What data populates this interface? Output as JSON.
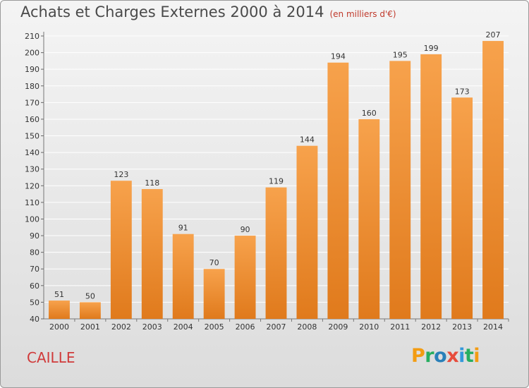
{
  "header": {
    "title": "Achats et Charges Externes 2000 à 2014",
    "subtitle": "(en milliers d'€)"
  },
  "footer": {
    "commune": "CAILLE",
    "logo_text": "Proxiti"
  },
  "colors": {
    "bar_top": "#f7a24c",
    "bar_bottom": "#e07a1c",
    "grid": "#ffffff",
    "axis_text": "#333333",
    "commune": "#d03a3a"
  },
  "chart_data": {
    "type": "bar",
    "title": "Achats et Charges Externes 2000 à 2014",
    "subtitle": "(en milliers d'€)",
    "categories": [
      "2000",
      "2001",
      "2002",
      "2003",
      "2004",
      "2005",
      "2006",
      "2007",
      "2008",
      "2009",
      "2010",
      "2011",
      "2012",
      "2013",
      "2014"
    ],
    "values": [
      51,
      50,
      123,
      118,
      91,
      70,
      90,
      119,
      144,
      194,
      160,
      195,
      199,
      173,
      207
    ],
    "ylim": [
      40,
      210
    ],
    "ytick_step": 10,
    "grid": true,
    "xlabel": "",
    "ylabel": ""
  }
}
